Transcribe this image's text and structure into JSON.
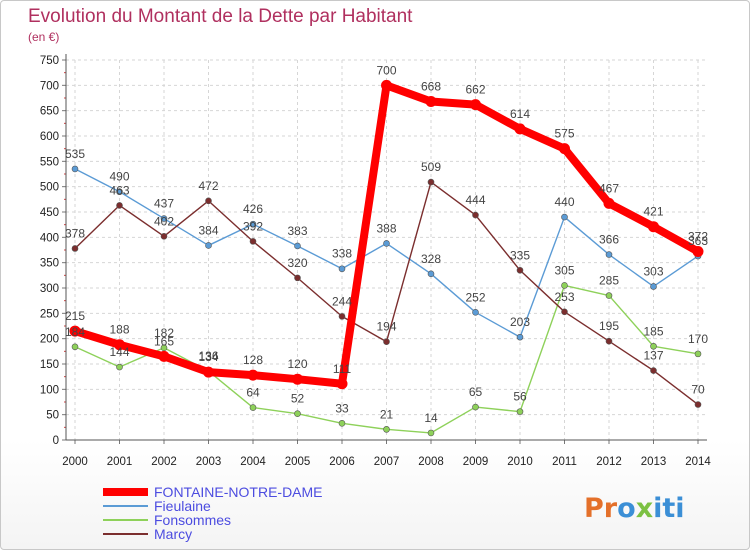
{
  "chart_data": {
    "type": "line",
    "title": "Evolution du Montant de la Dette par Habitant",
    "subtitle": "(en €)",
    "x": [
      "2000",
      "2001",
      "2002",
      "2003",
      "2004",
      "2005",
      "2006",
      "2007",
      "2008",
      "2009",
      "2010",
      "2011",
      "2012",
      "2013",
      "2014"
    ],
    "yticks": [
      "0",
      "50",
      "100",
      "150",
      "200",
      "250",
      "300",
      "350",
      "400",
      "450",
      "500",
      "550",
      "600",
      "650",
      "700",
      "750"
    ],
    "ylim": [
      0,
      750
    ],
    "grid": true,
    "legend_position": "bottom-left",
    "series": [
      {
        "name": "Fieulaine",
        "color": "#5b9bd5",
        "values": [
          535,
          490,
          437,
          384,
          426,
          383,
          338,
          388,
          328,
          252,
          203,
          440,
          366,
          303,
          363
        ],
        "labels": [
          "535",
          "490",
          "437",
          "384",
          "426",
          "383",
          "338",
          "388",
          "328",
          "252",
          "203",
          "440",
          "366",
          "303",
          "363"
        ]
      },
      {
        "name": "Fonsommes",
        "color": "#8ed15a",
        "values": [
          184,
          144,
          182,
          136,
          64,
          52,
          33,
          21,
          14,
          65,
          56,
          305,
          285,
          185,
          170
        ],
        "labels": [
          "184",
          "144",
          "182",
          "136",
          "64",
          "52",
          "33",
          "21",
          "14",
          "65",
          "56",
          "305",
          "285",
          "185",
          "170"
        ]
      },
      {
        "name": "Marcy",
        "color": "#7b2e2e",
        "values": [
          378,
          463,
          402,
          472,
          392,
          320,
          244,
          194,
          509,
          444,
          335,
          253,
          195,
          137,
          70
        ],
        "labels": [
          "378",
          "463",
          "402",
          "472",
          "392",
          "320",
          "244",
          "194",
          "509",
          "444",
          "335",
          "253",
          "195",
          "137",
          "70"
        ]
      },
      {
        "name": "FONTAINE-NOTRE-DAME",
        "color": "#ff0000",
        "values": [
          215,
          188,
          165,
          134,
          128,
          120,
          111,
          700,
          668,
          662,
          614,
          575,
          467,
          421,
          372
        ],
        "labels": [
          "215",
          "188",
          "165",
          "134",
          "128",
          "120",
          "111",
          "700",
          "668",
          "662",
          "614",
          "575",
          "467",
          "421",
          "372"
        ]
      }
    ],
    "legend_order": [
      "FONTAINE-NOTRE-DAME",
      "Fieulaine",
      "Fonsommes",
      "Marcy"
    ]
  },
  "logo": {
    "text": "Proxiti",
    "colors": [
      "#e4702a",
      "#e4702a",
      "#3b8fd6",
      "#7cc142",
      "#3b8fd6",
      "#3b8fd6",
      "#3b8fd6"
    ]
  }
}
